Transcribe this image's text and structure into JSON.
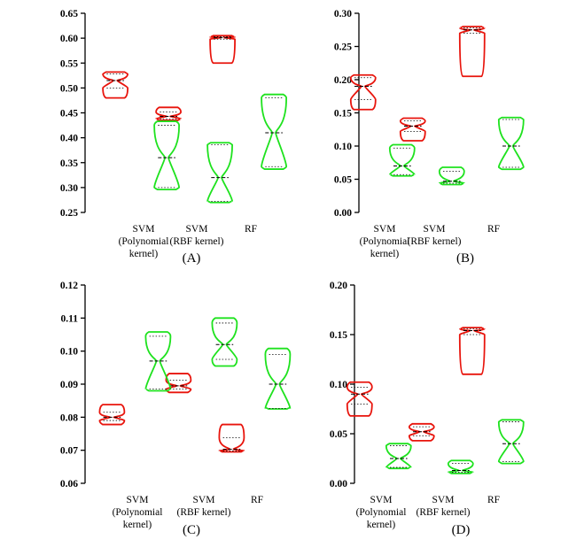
{
  "colors": {
    "series_a": "#e8140c",
    "series_b": "#1ee21e",
    "axis": "#000000"
  },
  "chart_data": [
    {
      "type": "violin",
      "panel_label": "(A)",
      "categories": [
        [
          "SVM",
          "(Polynomial",
          "kernel)"
        ],
        [
          "SVM",
          "(RBF kernel)"
        ],
        [
          "RF"
        ]
      ],
      "ylim": [
        0.25,
        0.65
      ],
      "yticks": [
        "0.25",
        "0.30",
        "0.35",
        "0.40",
        "0.45",
        "0.50",
        "0.55",
        "0.60",
        "0.65"
      ],
      "series": [
        {
          "color": "#e8140c",
          "violins": [
            {
              "min": 0.48,
              "max": 0.532,
              "median": 0.515,
              "q1": 0.5,
              "q3": 0.528
            },
            {
              "min": 0.435,
              "max": 0.461,
              "median": 0.443,
              "q1": 0.438,
              "q3": 0.452
            },
            {
              "min": 0.55,
              "max": 0.605,
              "median": 0.601,
              "q1": 0.598,
              "q3": 0.603
            }
          ]
        },
        {
          "color": "#1ee21e",
          "violins": [
            {
              "min": 0.296,
              "max": 0.433,
              "median": 0.36,
              "q1": 0.3,
              "q3": 0.425
            },
            {
              "min": 0.27,
              "max": 0.39,
              "median": 0.32,
              "q1": 0.272,
              "q3": 0.386
            },
            {
              "min": 0.337,
              "max": 0.487,
              "median": 0.41,
              "q1": 0.342,
              "q3": 0.48
            }
          ]
        }
      ]
    },
    {
      "type": "violin",
      "panel_label": "(B)",
      "categories": [
        [
          "SVM",
          "(Polynomial",
          "kernel)"
        ],
        [
          "SVM",
          "(RBF kernel)"
        ],
        [
          "RF"
        ]
      ],
      "ylim": [
        0,
        0.3
      ],
      "yticks": [
        "0.00",
        "0.05",
        "0.10",
        "0.15",
        "0.20",
        "0.25",
        "0.30"
      ],
      "series": [
        {
          "color": "#e8140c",
          "violins": [
            {
              "min": 0.155,
              "max": 0.207,
              "median": 0.19,
              "q1": 0.17,
              "q3": 0.203
            },
            {
              "min": 0.108,
              "max": 0.142,
              "median": 0.13,
              "q1": 0.122,
              "q3": 0.138
            },
            {
              "min": 0.205,
              "max": 0.28,
              "median": 0.275,
              "q1": 0.27,
              "q3": 0.278
            }
          ]
        },
        {
          "color": "#1ee21e",
          "violins": [
            {
              "min": 0.055,
              "max": 0.102,
              "median": 0.07,
              "q1": 0.057,
              "q3": 0.097
            },
            {
              "min": 0.042,
              "max": 0.068,
              "median": 0.047,
              "q1": 0.044,
              "q3": 0.062
            },
            {
              "min": 0.065,
              "max": 0.143,
              "median": 0.1,
              "q1": 0.068,
              "q3": 0.14
            }
          ]
        }
      ]
    },
    {
      "type": "violin",
      "panel_label": "(C)",
      "categories": [
        [
          "SVM",
          "(Polynomial",
          "kernel)"
        ],
        [
          "SVM",
          "(RBF kernel)"
        ],
        [
          "RF"
        ]
      ],
      "ylim": [
        0.06,
        0.12
      ],
      "yticks": [
        "0.06",
        "0.07",
        "0.08",
        "0.09",
        "0.10",
        "0.11",
        "0.12"
      ],
      "series": [
        {
          "color": "#e8140c",
          "violins": [
            {
              "min": 0.0778,
              "max": 0.0838,
              "median": 0.08,
              "q1": 0.079,
              "q3": 0.0815
            },
            {
              "min": 0.0875,
              "max": 0.0932,
              "median": 0.0895,
              "q1": 0.0885,
              "q3": 0.0912
            },
            {
              "min": 0.0695,
              "max": 0.0778,
              "median": 0.0703,
              "q1": 0.0698,
              "q3": 0.0738
            }
          ]
        },
        {
          "color": "#1ee21e",
          "violins": [
            {
              "min": 0.088,
              "max": 0.1058,
              "median": 0.097,
              "q1": 0.0885,
              "q3": 0.1045
            },
            {
              "min": 0.0955,
              "max": 0.11,
              "median": 0.102,
              "q1": 0.0975,
              "q3": 0.1085
            },
            {
              "min": 0.0825,
              "max": 0.1008,
              "median": 0.09,
              "q1": 0.0826,
              "q3": 0.099
            }
          ]
        }
      ]
    },
    {
      "type": "violin",
      "panel_label": "(D)",
      "categories": [
        [
          "SVM",
          "(Polynomial",
          "kernel)"
        ],
        [
          "SVM",
          "(RBF kernel)"
        ],
        [
          "RF"
        ]
      ],
      "ylim": [
        0,
        0.2
      ],
      "yticks": [
        "0.00",
        "0.05",
        "0.10",
        "0.15",
        "0.20"
      ],
      "series": [
        {
          "color": "#e8140c",
          "violins": [
            {
              "min": 0.068,
              "max": 0.102,
              "median": 0.09,
              "q1": 0.08,
              "q3": 0.097
            },
            {
              "min": 0.043,
              "max": 0.06,
              "median": 0.052,
              "q1": 0.048,
              "q3": 0.057
            },
            {
              "min": 0.11,
              "max": 0.157,
              "median": 0.154,
              "q1": 0.15,
              "q3": 0.156
            }
          ]
        },
        {
          "color": "#1ee21e",
          "violins": [
            {
              "min": 0.015,
              "max": 0.04,
              "median": 0.025,
              "q1": 0.016,
              "q3": 0.038
            },
            {
              "min": 0.01,
              "max": 0.023,
              "median": 0.013,
              "q1": 0.011,
              "q3": 0.02
            },
            {
              "min": 0.02,
              "max": 0.064,
              "median": 0.04,
              "q1": 0.022,
              "q3": 0.062
            }
          ]
        }
      ]
    }
  ]
}
